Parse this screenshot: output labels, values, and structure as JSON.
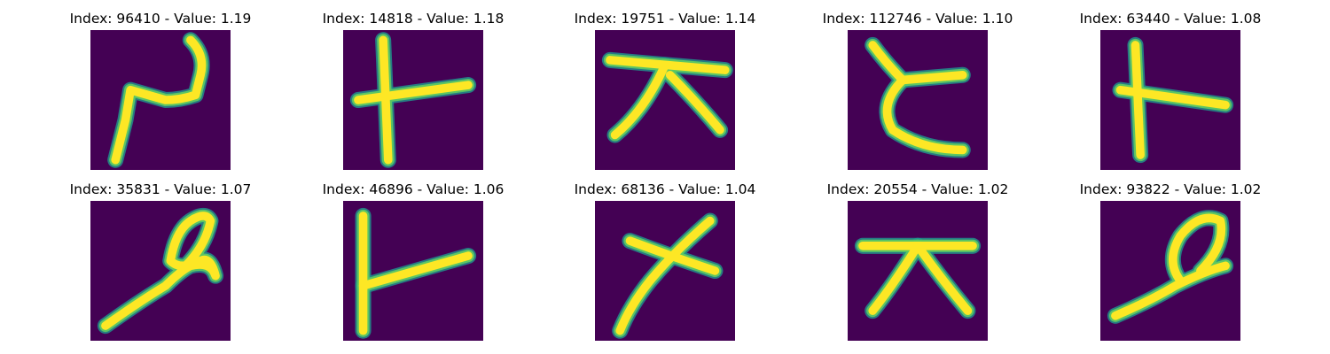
{
  "panels": [
    {
      "title": "Index: 96410 - Value: 1.19",
      "glyph": "stroke-glyph-hook-left"
    },
    {
      "title": "Index: 14818 - Value: 1.18",
      "glyph": "stroke-glyph-cross"
    },
    {
      "title": "Index: 19751 - Value: 1.14",
      "glyph": "stroke-glyph-bar-with-legs"
    },
    {
      "title": "Index: 112746 - Value: 1.10",
      "glyph": "stroke-glyph-curve"
    },
    {
      "title": "Index: 63440 - Value: 1.08",
      "glyph": "stroke-glyph-cross-right"
    },
    {
      "title": "Index: 35831 - Value: 1.07",
      "glyph": "stroke-glyph-loop-tail"
    },
    {
      "title": "Index: 46896 - Value: 1.06",
      "glyph": "stroke-glyph-t-rotated"
    },
    {
      "title": "Index: 68136 - Value: 1.04",
      "glyph": "stroke-glyph-x"
    },
    {
      "title": "Index: 20554 - Value: 1.02",
      "glyph": "stroke-glyph-bar-with-legs"
    },
    {
      "title": "Index: 93822 - Value: 1.02",
      "glyph": "stroke-glyph-loop-tail"
    }
  ],
  "colors": {
    "background": "#440154",
    "stroke_edge": "#21918c",
    "stroke_mid": "#5ec962",
    "stroke_core": "#fde725"
  }
}
